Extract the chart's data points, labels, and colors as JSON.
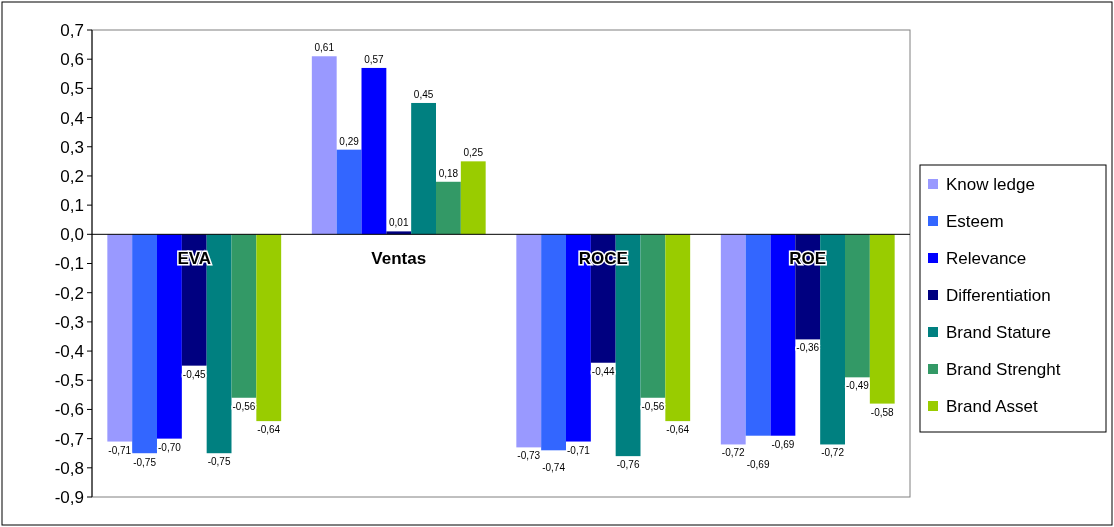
{
  "chart_data": {
    "type": "bar",
    "categories": [
      "EVA",
      "Ventas",
      "ROCE",
      "ROE"
    ],
    "series": [
      {
        "name": "Know ledge",
        "color": "#9999ff",
        "values": [
          -0.71,
          0.61,
          -0.73,
          -0.72
        ],
        "value_labels": [
          "-0,71",
          "0,61",
          "-0,73",
          "-0,72"
        ]
      },
      {
        "name": "Esteem",
        "color": "#3366ff",
        "values": [
          -0.75,
          0.29,
          -0.74,
          -0.69
        ],
        "value_labels": [
          "-0,75",
          "0,29",
          "-0,74",
          "-0,69"
        ]
      },
      {
        "name": "Relevance",
        "color": "#0000ff",
        "values": [
          -0.7,
          0.57,
          -0.71,
          -0.69
        ],
        "value_labels": [
          "-0,70",
          "0,57",
          "-0,71",
          "-0,69"
        ]
      },
      {
        "name": "Differentiation",
        "color": "#000080",
        "values": [
          -0.45,
          0.01,
          -0.44,
          -0.36
        ],
        "value_labels": [
          "-0,45",
          "0,01",
          "-0,44",
          "-0,36"
        ]
      },
      {
        "name": "Brand Stature",
        "color": "#008080",
        "values": [
          -0.75,
          0.45,
          -0.76,
          -0.72
        ],
        "value_labels": [
          "-0,75",
          "0,45",
          "-0,76",
          "-0,72"
        ]
      },
      {
        "name": "Brand Strenght",
        "color": "#339966",
        "values": [
          -0.56,
          0.18,
          -0.56,
          -0.49
        ],
        "value_labels": [
          "-0,56",
          "0,18",
          "-0,56",
          "-0,49"
        ]
      },
      {
        "name": "Brand Asset",
        "color": "#99cc00",
        "values": [
          -0.64,
          0.25,
          -0.64,
          -0.58
        ],
        "value_labels": [
          "-0,64",
          "0,25",
          "-0,64",
          "-0,58"
        ]
      }
    ],
    "ylim": [
      -0.9,
      0.7
    ],
    "yticks": [
      {
        "value": -0.9,
        "label": "-0,9"
      },
      {
        "value": -0.8,
        "label": "-0,8"
      },
      {
        "value": -0.7,
        "label": "-0,7"
      },
      {
        "value": -0.6,
        "label": "-0,6"
      },
      {
        "value": -0.5,
        "label": "-0,5"
      },
      {
        "value": -0.4,
        "label": "-0,4"
      },
      {
        "value": -0.3,
        "label": "-0,3"
      },
      {
        "value": -0.2,
        "label": "-0,2"
      },
      {
        "value": -0.1,
        "label": "-0,1"
      },
      {
        "value": 0,
        "label": "0,0"
      },
      {
        "value": 0.1,
        "label": "0,1"
      },
      {
        "value": 0.2,
        "label": "0,2"
      },
      {
        "value": 0.3,
        "label": "0,3"
      },
      {
        "value": 0.4,
        "label": "0,4"
      },
      {
        "value": 0.5,
        "label": "0,5"
      },
      {
        "value": 0.6,
        "label": "0,6"
      },
      {
        "value": 0.7,
        "label": "0,7"
      }
    ],
    "grid": false,
    "legend": "right"
  }
}
